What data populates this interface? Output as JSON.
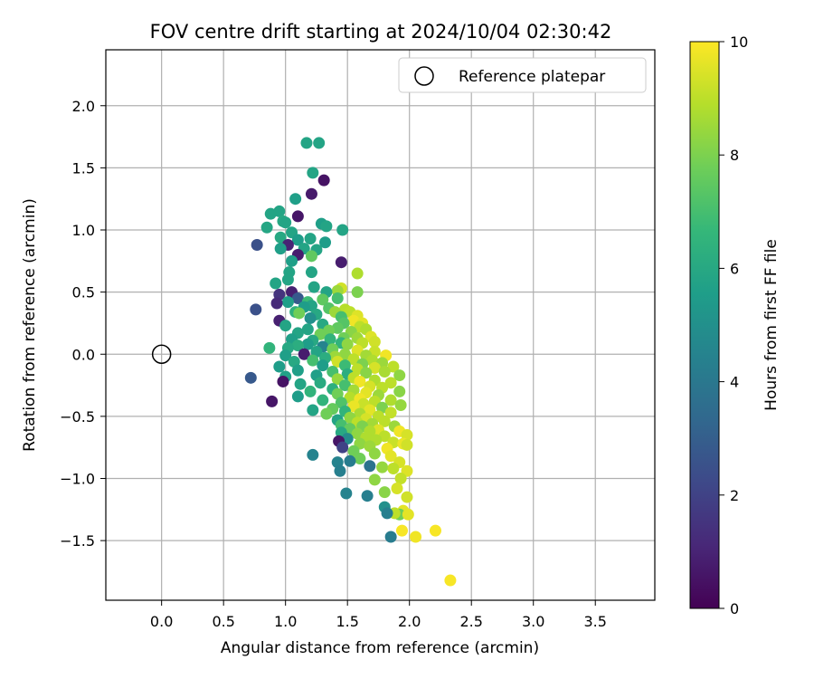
{
  "chart_data": {
    "type": "scatter",
    "title": "FOV centre drift starting at 2024/10/04 02:30:42",
    "xlabel": "Angular distance from reference (arcmin)",
    "ylabel": "Rotation from reference (arcmin)",
    "xlim": [
      -0.45,
      3.98
    ],
    "ylim": [
      -1.98,
      2.45
    ],
    "xticks": [
      "0.0",
      "0.5",
      "1.0",
      "1.5",
      "2.0",
      "2.5",
      "3.0",
      "3.5"
    ],
    "xtick_values": [
      0.0,
      0.5,
      1.0,
      1.5,
      2.0,
      2.5,
      3.0,
      3.5
    ],
    "yticks": [
      "2.0",
      "1.5",
      "1.0",
      "0.5",
      "0.0",
      "−0.5",
      "−1.0",
      "−1.5"
    ],
    "ytick_values": [
      2.0,
      1.5,
      1.0,
      0.5,
      0.0,
      -0.5,
      -1.0,
      -1.5
    ],
    "grid": true,
    "legend": {
      "entries": [
        "Reference platepar"
      ],
      "placement": "top-right"
    },
    "reference_point": {
      "x": 0.0,
      "y": 0.0,
      "label": "Reference platepar"
    },
    "colorbar": {
      "label": "Hours from first FF file",
      "min": 0,
      "max": 10,
      "ticks": [
        "0",
        "2",
        "4",
        "6",
        "8",
        "10"
      ],
      "tick_values": [
        0,
        2,
        4,
        6,
        8,
        10
      ],
      "colormap": "viridis"
    },
    "colormap_stops": [
      "#440154",
      "#482878",
      "#3e4989",
      "#31688e",
      "#26828e",
      "#1f9e89",
      "#35b779",
      "#6ece58",
      "#b5de2b",
      "#fde725"
    ],
    "points": [
      [
        1.17,
        1.7,
        5.8
      ],
      [
        1.27,
        1.7,
        5.8
      ],
      [
        1.22,
        1.46,
        5.8
      ],
      [
        1.31,
        1.4,
        0.5
      ],
      [
        1.21,
        1.29,
        0.7
      ],
      [
        1.08,
        1.25,
        5.6
      ],
      [
        1.29,
        1.05,
        5.6
      ],
      [
        0.95,
        1.15,
        5.8
      ],
      [
        0.88,
        1.13,
        5.8
      ],
      [
        1.1,
        1.11,
        0.6
      ],
      [
        0.98,
        1.07,
        6.0
      ],
      [
        1.0,
        1.06,
        5.8
      ],
      [
        1.33,
        1.03,
        5.8
      ],
      [
        1.46,
        1.0,
        5.8
      ],
      [
        0.85,
        1.02,
        5.9
      ],
      [
        1.05,
        0.98,
        5.8
      ],
      [
        0.96,
        0.94,
        6.0
      ],
      [
        1.2,
        0.93,
        5.8
      ],
      [
        1.1,
        0.92,
        5.5
      ],
      [
        1.32,
        0.9,
        5.5
      ],
      [
        1.02,
        0.88,
        1.0
      ],
      [
        0.77,
        0.88,
        2.5
      ],
      [
        0.96,
        0.85,
        5.6
      ],
      [
        1.15,
        0.85,
        5.8
      ],
      [
        1.25,
        0.84,
        5.8
      ],
      [
        1.1,
        0.8,
        0.8
      ],
      [
        1.21,
        0.79,
        7.5
      ],
      [
        1.05,
        0.75,
        5.6
      ],
      [
        1.45,
        0.74,
        0.8
      ],
      [
        1.03,
        0.66,
        5.8
      ],
      [
        1.21,
        0.66,
        5.8
      ],
      [
        1.58,
        0.65,
        8.8
      ],
      [
        1.02,
        0.6,
        5.8
      ],
      [
        0.92,
        0.57,
        5.8
      ],
      [
        1.23,
        0.54,
        5.8
      ],
      [
        1.45,
        0.53,
        9.3
      ],
      [
        1.42,
        0.51,
        8.5
      ],
      [
        1.33,
        0.5,
        5.8
      ],
      [
        1.58,
        0.5,
        8.0
      ],
      [
        1.05,
        0.5,
        0.9
      ],
      [
        0.95,
        0.48,
        1.5
      ],
      [
        1.1,
        0.45,
        2.8
      ],
      [
        1.42,
        0.45,
        7.0
      ],
      [
        1.3,
        0.44,
        7.5
      ],
      [
        1.18,
        0.42,
        6.8
      ],
      [
        1.02,
        0.42,
        5.6
      ],
      [
        0.93,
        0.41,
        1.2
      ],
      [
        1.21,
        0.39,
        5.8
      ],
      [
        1.15,
        0.38,
        5.5
      ],
      [
        1.35,
        0.37,
        7.3
      ],
      [
        1.48,
        0.36,
        8.9
      ],
      [
        0.76,
        0.36,
        2.5
      ],
      [
        1.08,
        0.34,
        6.4
      ],
      [
        1.4,
        0.34,
        8.5
      ],
      [
        1.52,
        0.34,
        9.0
      ],
      [
        1.11,
        0.33,
        7.8
      ],
      [
        1.25,
        0.32,
        6.0
      ],
      [
        1.58,
        0.31,
        9.5
      ],
      [
        1.45,
        0.3,
        7.0
      ],
      [
        1.2,
        0.29,
        5.0
      ],
      [
        0.95,
        0.27,
        0.9
      ],
      [
        1.55,
        0.27,
        9.8
      ],
      [
        1.62,
        0.25,
        9.6
      ],
      [
        1.47,
        0.25,
        7.3
      ],
      [
        1.3,
        0.24,
        6.0
      ],
      [
        1.0,
        0.23,
        5.8
      ],
      [
        1.6,
        0.22,
        9.0
      ],
      [
        1.42,
        0.21,
        7.5
      ],
      [
        1.65,
        0.2,
        8.8
      ],
      [
        1.18,
        0.2,
        5.8
      ],
      [
        1.35,
        0.19,
        7.8
      ],
      [
        1.53,
        0.18,
        8.2
      ],
      [
        1.1,
        0.17,
        5.8
      ],
      [
        1.28,
        0.16,
        7.8
      ],
      [
        1.69,
        0.14,
        9.5
      ],
      [
        1.58,
        0.13,
        8.5
      ],
      [
        1.47,
        0.13,
        7.8
      ],
      [
        1.05,
        0.12,
        5.6
      ],
      [
        1.36,
        0.12,
        6.5
      ],
      [
        1.22,
        0.11,
        6.0
      ],
      [
        1.72,
        0.1,
        9.3
      ],
      [
        1.62,
        0.09,
        9.0
      ],
      [
        1.45,
        0.09,
        6.5
      ],
      [
        1.5,
        0.08,
        8.3
      ],
      [
        1.18,
        0.08,
        5.5
      ],
      [
        1.1,
        0.07,
        6.2
      ],
      [
        1.3,
        0.06,
        4.5
      ],
      [
        1.02,
        0.05,
        6.0
      ],
      [
        1.38,
        0.04,
        7.8
      ],
      [
        0.87,
        0.05,
        6.5
      ],
      [
        1.58,
        0.03,
        9.5
      ],
      [
        1.72,
        0.02,
        9.2
      ],
      [
        1.25,
        0.02,
        5.8
      ],
      [
        1.48,
        0.0,
        8.3
      ],
      [
        1.15,
        0.0,
        0.8
      ],
      [
        1.65,
        -0.01,
        8.6
      ],
      [
        1.81,
        -0.01,
        9.8
      ],
      [
        1.0,
        -0.01,
        5.6
      ],
      [
        1.4,
        -0.02,
        8.5
      ],
      [
        1.32,
        -0.03,
        6.2
      ],
      [
        1.55,
        -0.04,
        9.0
      ],
      [
        1.7,
        -0.05,
        8.8
      ],
      [
        1.22,
        -0.05,
        7.0
      ],
      [
        1.07,
        -0.06,
        6.0
      ],
      [
        1.42,
        -0.06,
        9.3
      ],
      [
        1.78,
        -0.07,
        8.5
      ],
      [
        1.62,
        -0.08,
        8.0
      ],
      [
        1.48,
        -0.09,
        6.8
      ],
      [
        1.3,
        -0.09,
        5.5
      ],
      [
        1.87,
        -0.1,
        9.0
      ],
      [
        0.95,
        -0.1,
        5.5
      ],
      [
        1.72,
        -0.11,
        9.4
      ],
      [
        1.58,
        -0.12,
        9.0
      ],
      [
        1.1,
        -0.13,
        5.6
      ],
      [
        1.38,
        -0.14,
        7.0
      ],
      [
        1.8,
        -0.14,
        8.7
      ],
      [
        1.65,
        -0.15,
        8.2
      ],
      [
        1.5,
        -0.16,
        6.2
      ],
      [
        1.25,
        -0.17,
        5.6
      ],
      [
        1.92,
        -0.17,
        8.3
      ],
      [
        1.0,
        -0.18,
        5.7
      ],
      [
        0.72,
        -0.19,
        2.8
      ],
      [
        1.55,
        -0.19,
        9.0
      ],
      [
        1.42,
        -0.2,
        8.4
      ],
      [
        1.72,
        -0.21,
        8.8
      ],
      [
        1.6,
        -0.22,
        9.8
      ],
      [
        1.85,
        -0.23,
        9.0
      ],
      [
        1.28,
        -0.23,
        6.1
      ],
      [
        1.12,
        -0.24,
        5.8
      ],
      [
        1.48,
        -0.25,
        7.0
      ],
      [
        1.68,
        -0.26,
        9.4
      ],
      [
        0.98,
        -0.22,
        0.5
      ],
      [
        1.78,
        -0.27,
        9.0
      ],
      [
        1.38,
        -0.28,
        6.3
      ],
      [
        1.55,
        -0.29,
        8.6
      ],
      [
        1.2,
        -0.3,
        6.5
      ],
      [
        1.92,
        -0.3,
        8.2
      ],
      [
        1.65,
        -0.31,
        9.6
      ],
      [
        1.42,
        -0.32,
        7.8
      ],
      [
        1.75,
        -0.33,
        8.5
      ],
      [
        1.1,
        -0.34,
        5.5
      ],
      [
        1.52,
        -0.35,
        8.9
      ],
      [
        1.6,
        -0.36,
        9.8
      ],
      [
        1.85,
        -0.37,
        8.8
      ],
      [
        1.3,
        -0.37,
        6.5
      ],
      [
        1.72,
        -0.38,
        9.0
      ],
      [
        0.89,
        -0.38,
        0.6
      ],
      [
        1.45,
        -0.39,
        7.2
      ],
      [
        1.63,
        -0.4,
        9.2
      ],
      [
        1.93,
        -0.41,
        8.4
      ],
      [
        1.55,
        -0.42,
        9.7
      ],
      [
        1.78,
        -0.43,
        8.0
      ],
      [
        1.38,
        -0.44,
        7.6
      ],
      [
        1.22,
        -0.45,
        5.8
      ],
      [
        1.68,
        -0.45,
        9.6
      ],
      [
        1.48,
        -0.46,
        6.5
      ],
      [
        1.85,
        -0.47,
        9.1
      ],
      [
        1.6,
        -0.48,
        8.7
      ],
      [
        1.33,
        -0.48,
        7.8
      ],
      [
        1.75,
        -0.5,
        9.0
      ],
      [
        1.52,
        -0.51,
        8.3
      ],
      [
        1.65,
        -0.52,
        9.4
      ],
      [
        1.42,
        -0.53,
        5.8
      ],
      [
        1.8,
        -0.54,
        9.0
      ],
      [
        1.58,
        -0.55,
        9.0
      ],
      [
        1.7,
        -0.56,
        8.6
      ],
      [
        1.45,
        -0.57,
        7.0
      ],
      [
        1.62,
        -0.58,
        8.0
      ],
      [
        1.88,
        -0.58,
        8.5
      ],
      [
        1.52,
        -0.6,
        7.6
      ],
      [
        1.75,
        -0.61,
        9.5
      ],
      [
        1.68,
        -0.62,
        8.8
      ],
      [
        1.92,
        -0.62,
        9.8
      ],
      [
        1.45,
        -0.63,
        6.0
      ],
      [
        1.58,
        -0.64,
        8.3
      ],
      [
        1.98,
        -0.65,
        9.4
      ],
      [
        1.8,
        -0.66,
        9.0
      ],
      [
        1.65,
        -0.67,
        8.8
      ],
      [
        1.5,
        -0.68,
        4.8
      ],
      [
        1.73,
        -0.69,
        8.8
      ],
      [
        1.43,
        -0.7,
        0.6
      ],
      [
        1.87,
        -0.71,
        9.2
      ],
      [
        1.95,
        -0.72,
        9.7
      ],
      [
        1.6,
        -0.72,
        8.3
      ],
      [
        1.68,
        -0.74,
        8.5
      ],
      [
        1.46,
        -0.75,
        2.0
      ],
      [
        1.82,
        -0.76,
        9.8
      ],
      [
        1.98,
        -0.73,
        9.3
      ],
      [
        1.55,
        -0.78,
        7.8
      ],
      [
        1.72,
        -0.8,
        8.3
      ],
      [
        1.85,
        -0.82,
        9.6
      ],
      [
        1.22,
        -0.81,
        4.5
      ],
      [
        1.6,
        -0.84,
        7.8
      ],
      [
        1.52,
        -0.86,
        4.2
      ],
      [
        1.92,
        -0.87,
        9.4
      ],
      [
        1.42,
        -0.87,
        4.5
      ],
      [
        1.68,
        -0.9,
        3.8
      ],
      [
        1.78,
        -0.91,
        8.4
      ],
      [
        1.87,
        -0.92,
        9.0
      ],
      [
        1.98,
        -0.94,
        9.5
      ],
      [
        1.44,
        -0.94,
        4.3
      ],
      [
        1.93,
        -1.0,
        9.1
      ],
      [
        1.72,
        -1.01,
        8.3
      ],
      [
        1.9,
        -1.08,
        9.4
      ],
      [
        1.8,
        -1.11,
        8.2
      ],
      [
        1.49,
        -1.12,
        4.5
      ],
      [
        1.66,
        -1.14,
        4.3
      ],
      [
        1.98,
        -1.15,
        9.3
      ],
      [
        1.8,
        -1.23,
        5.0
      ],
      [
        1.95,
        -1.26,
        9.6
      ],
      [
        1.92,
        -1.29,
        7.8
      ],
      [
        1.88,
        -1.28,
        9.0
      ],
      [
        1.82,
        -1.28,
        4.3
      ],
      [
        1.99,
        -1.29,
        9.6
      ],
      [
        1.94,
        -1.42,
        9.9
      ],
      [
        2.21,
        -1.42,
        9.9
      ],
      [
        1.85,
        -1.47,
        4.2
      ],
      [
        2.05,
        -1.47,
        9.8
      ],
      [
        2.33,
        -1.82,
        9.9
      ]
    ]
  }
}
